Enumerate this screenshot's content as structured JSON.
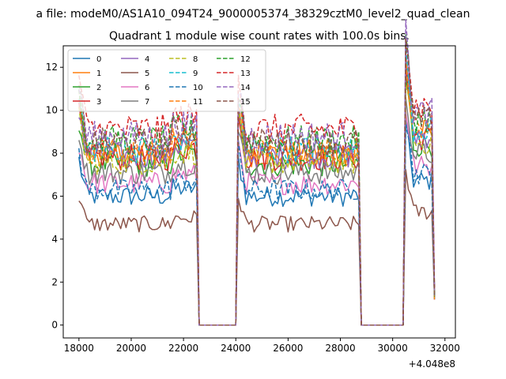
{
  "chart_data": {
    "type": "line",
    "suptitle": "a file: modeM0/AS1A10_094T24_9000005374_38329cztM0_level2_quad_clean",
    "title": "Quadrant 1 module wise count rates with 100.0s bins.",
    "xlabel": "",
    "ylabel": "",
    "offset_text": "+4.048e8",
    "xlim": [
      17400,
      32400
    ],
    "ylim": [
      -0.6,
      13.0
    ],
    "xticks": [
      18000,
      20000,
      22000,
      24000,
      26000,
      28000,
      30000,
      32000
    ],
    "xtick_labels": [
      "18000",
      "20000",
      "22000",
      "24000",
      "26000",
      "28000",
      "30000",
      "32000"
    ],
    "yticks": [
      0,
      2,
      4,
      6,
      8,
      10,
      12
    ],
    "ytick_labels": [
      "0",
      "2",
      "4",
      "6",
      "8",
      "10",
      "12"
    ],
    "grid": false,
    "legend_position": "top-left",
    "legend_columns": 4,
    "segments": [
      {
        "start": 18000,
        "end": 22500,
        "active": true
      },
      {
        "start": 22600,
        "end": 24000,
        "active": false
      },
      {
        "start": 24100,
        "end": 28700,
        "active": true
      },
      {
        "start": 28800,
        "end": 30400,
        "active": false
      },
      {
        "start": 30500,
        "end": 31600,
        "active": true
      }
    ],
    "series": [
      {
        "name": "0",
        "level": 6.0,
        "color": "#1f77b4",
        "dash": false
      },
      {
        "name": "1",
        "level": 8.0,
        "color": "#ff7f0e",
        "dash": false
      },
      {
        "name": "2",
        "level": 7.5,
        "color": "#2ca02c",
        "dash": false
      },
      {
        "name": "3",
        "level": 7.8,
        "color": "#d62728",
        "dash": false
      },
      {
        "name": "4",
        "level": 7.9,
        "color": "#9467bd",
        "dash": false
      },
      {
        "name": "5",
        "level": 4.7,
        "color": "#8c564b",
        "dash": false
      },
      {
        "name": "6",
        "level": 6.6,
        "color": "#e377c2",
        "dash": false
      },
      {
        "name": "7",
        "level": 7.1,
        "color": "#7f7f7f",
        "dash": false
      },
      {
        "name": "8",
        "level": 7.6,
        "color": "#bcbd22",
        "dash": true
      },
      {
        "name": "9",
        "level": 8.2,
        "color": "#17becf",
        "dash": true
      },
      {
        "name": "10",
        "level": 6.3,
        "color": "#1f77b4",
        "dash": true
      },
      {
        "name": "11",
        "level": 8.1,
        "color": "#ff7f0e",
        "dash": true
      },
      {
        "name": "12",
        "level": 8.6,
        "color": "#2ca02c",
        "dash": true
      },
      {
        "name": "13",
        "level": 9.1,
        "color": "#d62728",
        "dash": true
      },
      {
        "name": "14",
        "level": 8.8,
        "color": "#9467bd",
        "dash": true
      },
      {
        "name": "15",
        "level": 8.5,
        "color": "#8c564b",
        "dash": true
      }
    ]
  }
}
